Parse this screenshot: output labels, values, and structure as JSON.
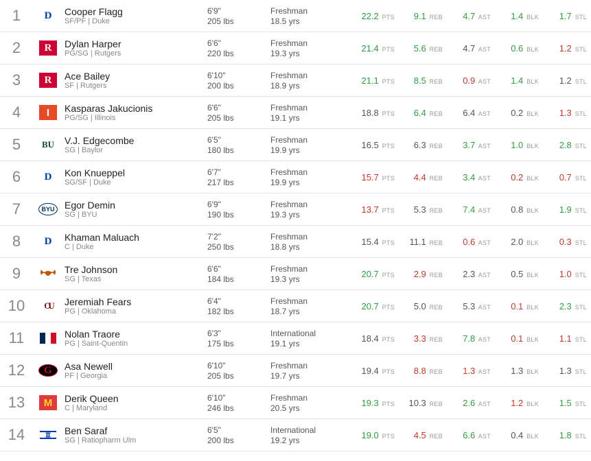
{
  "stat_labels": [
    "PTS",
    "REB",
    "AST",
    "BLK",
    "STL"
  ],
  "colors": {
    "green": "#2e9e3f",
    "red": "#c0392b",
    "neutral": "#555555"
  },
  "players": [
    {
      "rank": 1,
      "name": "Cooper Flagg",
      "pos_team": "SF/PF | Duke",
      "height": "6'9\"",
      "weight": "205 lbs",
      "class": "Freshman",
      "age": "18.5 yrs",
      "logo": {
        "text": "D",
        "bg": "#ffffff",
        "fg": "#013ca6",
        "font": "Georgia, serif",
        "outline": false
      },
      "stats": [
        {
          "v": "22.2",
          "c": "green"
        },
        {
          "v": "9.1",
          "c": "green"
        },
        {
          "v": "4.7",
          "c": "green"
        },
        {
          "v": "1.4",
          "c": "green"
        },
        {
          "v": "1.7",
          "c": "green"
        }
      ]
    },
    {
      "rank": 2,
      "name": "Dylan Harper",
      "pos_team": "PG/SG | Rutgers",
      "height": "6'6\"",
      "weight": "220 lbs",
      "class": "Freshman",
      "age": "19.3 yrs",
      "logo": {
        "text": "R",
        "bg": "#cc0033",
        "fg": "#ffffff",
        "font": "Georgia, serif"
      },
      "stats": [
        {
          "v": "21.4",
          "c": "green"
        },
        {
          "v": "5.6",
          "c": "green"
        },
        {
          "v": "4.7",
          "c": "neutral"
        },
        {
          "v": "0.6",
          "c": "green"
        },
        {
          "v": "1.2",
          "c": "red"
        }
      ]
    },
    {
      "rank": 3,
      "name": "Ace Bailey",
      "pos_team": "SF | Rutgers",
      "height": "6'10\"",
      "weight": "200 lbs",
      "class": "Freshman",
      "age": "18.9 yrs",
      "logo": {
        "text": "R",
        "bg": "#cc0033",
        "fg": "#ffffff",
        "font": "Georgia, serif"
      },
      "stats": [
        {
          "v": "21.1",
          "c": "green"
        },
        {
          "v": "8.5",
          "c": "green"
        },
        {
          "v": "0.9",
          "c": "red"
        },
        {
          "v": "1.4",
          "c": "green"
        },
        {
          "v": "1.2",
          "c": "neutral"
        }
      ]
    },
    {
      "rank": 4,
      "name": "Kasparas Jakucionis",
      "pos_team": "PG/SG | Illinois",
      "height": "6'6\"",
      "weight": "205 lbs",
      "class": "Freshman",
      "age": "19.1 yrs",
      "logo": {
        "text": "I",
        "bg": "#e84a27",
        "fg": "#ffffff",
        "font": "Arial Black, sans-serif"
      },
      "stats": [
        {
          "v": "18.8",
          "c": "neutral"
        },
        {
          "v": "6.4",
          "c": "green"
        },
        {
          "v": "6.4",
          "c": "neutral"
        },
        {
          "v": "0.2",
          "c": "neutral"
        },
        {
          "v": "1.3",
          "c": "red"
        }
      ]
    },
    {
      "rank": 5,
      "name": "V.J. Edgecombe",
      "pos_team": "SG | Baylor",
      "height": "6'5\"",
      "weight": "180 lbs",
      "class": "Freshman",
      "age": "19.9 yrs",
      "logo": {
        "text": "BU",
        "bg": "#ffffff",
        "fg": "#154734",
        "font": "Georgia, serif",
        "size": "13px"
      },
      "stats": [
        {
          "v": "16.5",
          "c": "neutral"
        },
        {
          "v": "6.3",
          "c": "neutral"
        },
        {
          "v": "3.7",
          "c": "green"
        },
        {
          "v": "1.0",
          "c": "green"
        },
        {
          "v": "2.8",
          "c": "green"
        }
      ]
    },
    {
      "rank": 6,
      "name": "Kon Knueppel",
      "pos_team": "SG/SF | Duke",
      "height": "6'7\"",
      "weight": "217 lbs",
      "class": "Freshman",
      "age": "19.9 yrs",
      "logo": {
        "text": "D",
        "bg": "#ffffff",
        "fg": "#013ca6",
        "font": "Georgia, serif"
      },
      "stats": [
        {
          "v": "15.7",
          "c": "red"
        },
        {
          "v": "4.4",
          "c": "red"
        },
        {
          "v": "3.4",
          "c": "green"
        },
        {
          "v": "0.2",
          "c": "red"
        },
        {
          "v": "0.7",
          "c": "red"
        }
      ]
    },
    {
      "rank": 7,
      "name": "Egor Demin",
      "pos_team": "SG | BYU",
      "height": "6'9\"",
      "weight": "190 lbs",
      "class": "Freshman",
      "age": "19.3 yrs",
      "logo": {
        "text": "BYU",
        "bg": "#ffffff",
        "fg": "#002e5d",
        "font": "Arial, sans-serif",
        "size": "9px",
        "oval": true
      },
      "stats": [
        {
          "v": "13.7",
          "c": "red"
        },
        {
          "v": "5.3",
          "c": "neutral"
        },
        {
          "v": "7.4",
          "c": "green"
        },
        {
          "v": "0.8",
          "c": "neutral"
        },
        {
          "v": "1.9",
          "c": "green"
        }
      ]
    },
    {
      "rank": 8,
      "name": "Khaman Maluach",
      "pos_team": "C | Duke",
      "height": "7'2\"",
      "weight": "250 lbs",
      "class": "Freshman",
      "age": "18.8 yrs",
      "logo": {
        "text": "D",
        "bg": "#ffffff",
        "fg": "#013ca6",
        "font": "Georgia, serif"
      },
      "stats": [
        {
          "v": "15.4",
          "c": "neutral"
        },
        {
          "v": "11.1",
          "c": "neutral"
        },
        {
          "v": "0.6",
          "c": "red"
        },
        {
          "v": "2.0",
          "c": "neutral"
        },
        {
          "v": "0.3",
          "c": "red"
        }
      ]
    },
    {
      "rank": 9,
      "name": "Tre Johnson",
      "pos_team": "SG | Texas",
      "height": "6'6\"",
      "weight": "184 lbs",
      "class": "Freshman",
      "age": "19.3 yrs",
      "logo": {
        "svg": "longhorn",
        "bg": "#ffffff",
        "fg": "#bf5700"
      },
      "stats": [
        {
          "v": "20.7",
          "c": "green"
        },
        {
          "v": "2.9",
          "c": "red"
        },
        {
          "v": "2.3",
          "c": "neutral"
        },
        {
          "v": "0.5",
          "c": "neutral"
        },
        {
          "v": "1.0",
          "c": "red"
        }
      ]
    },
    {
      "rank": 10,
      "name": "Jeremiah Fears",
      "pos_team": "PG | Oklahoma",
      "height": "6'4\"",
      "weight": "182 lbs",
      "class": "Freshman",
      "age": "18.7 yrs",
      "logo": {
        "text": "OU",
        "bg": "#ffffff",
        "fg": "#841617",
        "font": "Georgia, serif",
        "size": "13px",
        "interlock": true
      },
      "stats": [
        {
          "v": "20.7",
          "c": "green"
        },
        {
          "v": "5.0",
          "c": "neutral"
        },
        {
          "v": "5.3",
          "c": "neutral"
        },
        {
          "v": "0.1",
          "c": "red"
        },
        {
          "v": "2.3",
          "c": "green"
        }
      ]
    },
    {
      "rank": 11,
      "name": "Nolan Traore",
      "pos_team": "PG | Saint-Quentin",
      "height": "6'3\"",
      "weight": "175 lbs",
      "class": "International",
      "age": "19.1 yrs",
      "logo": {
        "svg": "france",
        "bg": "#ffffff"
      },
      "stats": [
        {
          "v": "18.4",
          "c": "neutral"
        },
        {
          "v": "3.3",
          "c": "red"
        },
        {
          "v": "7.8",
          "c": "green"
        },
        {
          "v": "0.1",
          "c": "red"
        },
        {
          "v": "1.1",
          "c": "red"
        }
      ]
    },
    {
      "rank": 12,
      "name": "Asa Newell",
      "pos_team": "PF | Georgia",
      "height": "6'10\"",
      "weight": "205 lbs",
      "class": "Freshman",
      "age": "19.7 yrs",
      "logo": {
        "text": "G",
        "bg": "#000000",
        "fg": "#ba0c2f",
        "font": "Georgia, serif",
        "oval": true
      },
      "stats": [
        {
          "v": "19.4",
          "c": "neutral"
        },
        {
          "v": "8.8",
          "c": "red"
        },
        {
          "v": "1.3",
          "c": "red"
        },
        {
          "v": "1.3",
          "c": "neutral"
        },
        {
          "v": "1.3",
          "c": "neutral"
        }
      ]
    },
    {
      "rank": 13,
      "name": "Derik Queen",
      "pos_team": "C | Maryland",
      "height": "6'10\"",
      "weight": "246 lbs",
      "class": "Freshman",
      "age": "20.5 yrs",
      "logo": {
        "text": "M",
        "bg": "#e03a3e",
        "fg": "#ffd520",
        "font": "Arial Black, sans-serif"
      },
      "stats": [
        {
          "v": "19.3",
          "c": "green"
        },
        {
          "v": "10.3",
          "c": "neutral"
        },
        {
          "v": "2.6",
          "c": "green"
        },
        {
          "v": "1.2",
          "c": "red"
        },
        {
          "v": "1.5",
          "c": "green"
        }
      ]
    },
    {
      "rank": 14,
      "name": "Ben Saraf",
      "pos_team": "SG | Ratiopharm Ulm",
      "height": "6'5\"",
      "weight": "200 lbs",
      "class": "International",
      "age": "19.2 yrs",
      "logo": {
        "svg": "israel",
        "bg": "#ffffff"
      },
      "stats": [
        {
          "v": "19.0",
          "c": "green"
        },
        {
          "v": "4.5",
          "c": "red"
        },
        {
          "v": "6.6",
          "c": "green"
        },
        {
          "v": "0.4",
          "c": "neutral"
        },
        {
          "v": "1.8",
          "c": "green"
        }
      ]
    }
  ]
}
